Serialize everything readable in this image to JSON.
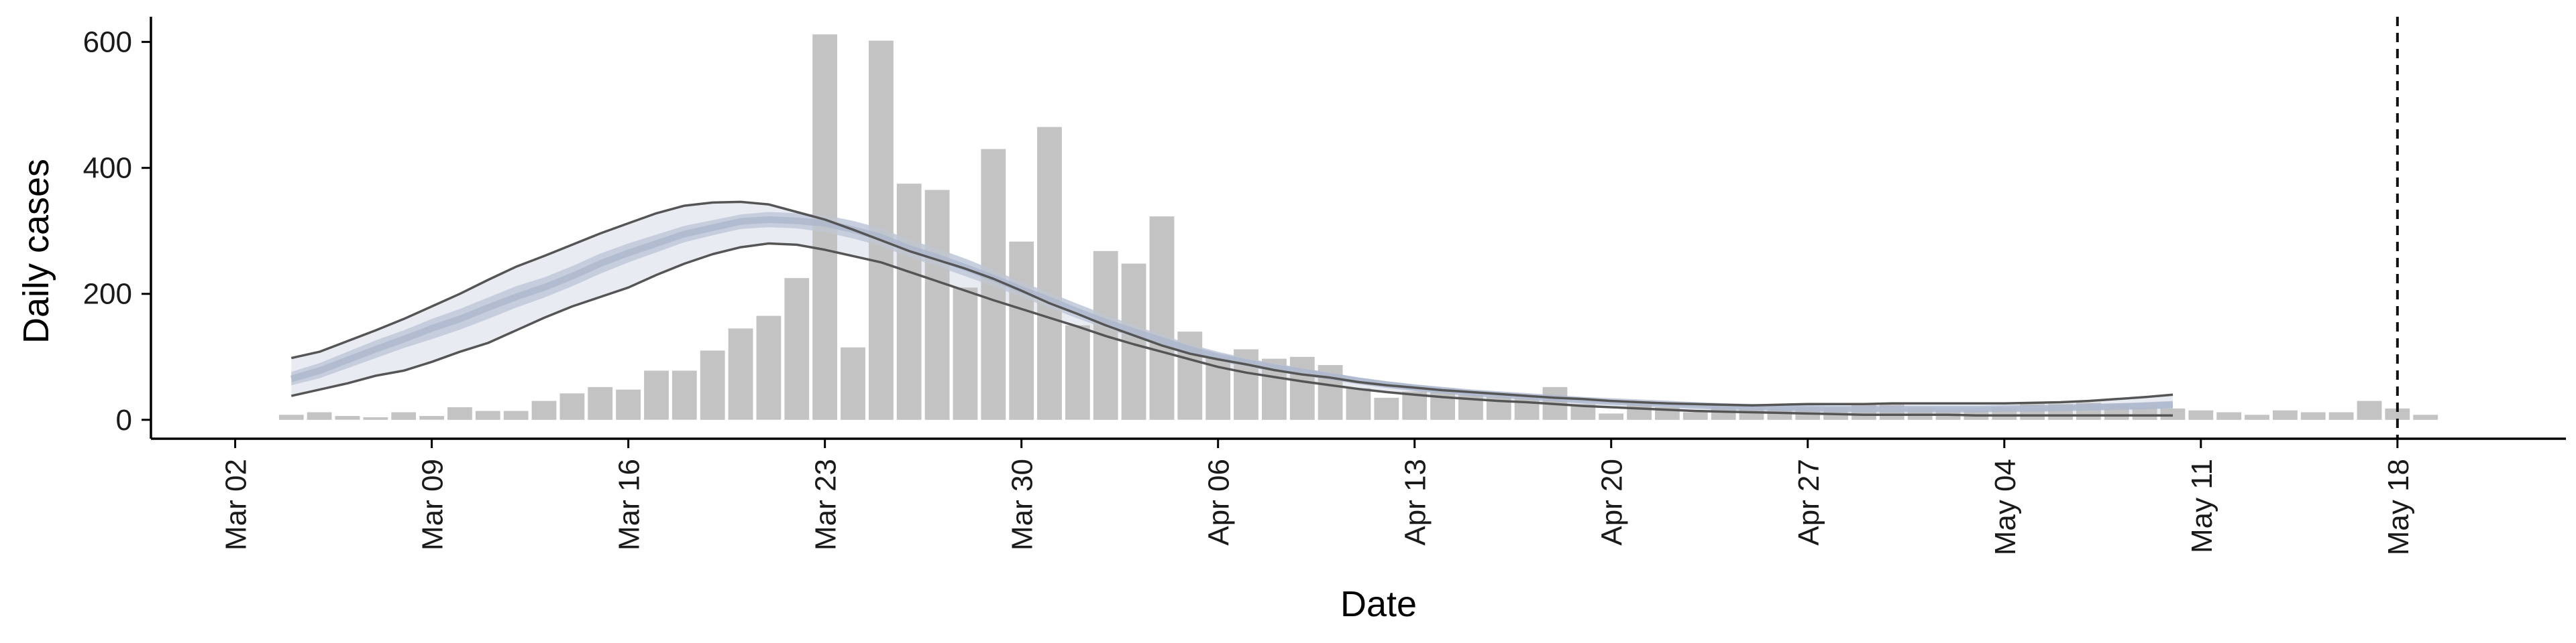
{
  "chart_data": {
    "type": "bar",
    "xlabel": "Date",
    "ylabel": "Daily cases",
    "ylim": [
      -30,
      640
    ],
    "y_ticks": [
      0,
      200,
      400,
      600
    ],
    "x_ticks": [
      {
        "label": "Mar 02",
        "date": "2020-03-02"
      },
      {
        "label": "Mar 09",
        "date": "2020-03-09"
      },
      {
        "label": "Mar 16",
        "date": "2020-03-16"
      },
      {
        "label": "Mar 23",
        "date": "2020-03-23"
      },
      {
        "label": "Mar 30",
        "date": "2020-03-30"
      },
      {
        "label": "Apr 06",
        "date": "2020-04-06"
      },
      {
        "label": "Apr 13",
        "date": "2020-04-13"
      },
      {
        "label": "Apr 20",
        "date": "2020-04-20"
      },
      {
        "label": "Apr 27",
        "date": "2020-04-27"
      },
      {
        "label": "May 04",
        "date": "2020-05-04"
      },
      {
        "label": "May 11",
        "date": "2020-05-11"
      },
      {
        "label": "May 18",
        "date": "2020-05-18"
      }
    ],
    "xlim": [
      "2020-02-28",
      "2020-05-24"
    ],
    "grid": false,
    "reference_line": {
      "date": "2020-05-18",
      "style": "dashed"
    },
    "bars": {
      "start_date": "2020-03-04",
      "values": [
        8,
        12,
        6,
        4,
        12,
        6,
        20,
        14,
        14,
        30,
        42,
        52,
        48,
        78,
        78,
        110,
        145,
        165,
        225,
        612,
        115,
        602,
        375,
        365,
        210,
        430,
        283,
        465,
        150,
        268,
        248,
        323,
        140,
        100,
        112,
        97,
        100,
        87,
        50,
        35,
        45,
        50,
        40,
        37,
        35,
        52,
        25,
        10,
        25,
        20,
        12,
        25,
        22,
        18,
        20,
        20,
        25,
        25,
        20,
        15,
        15,
        20,
        25,
        25,
        27,
        25,
        20,
        18,
        15,
        12,
        8,
        15,
        12,
        12,
        30,
        18,
        8
      ],
      "color": "#bebebe"
    },
    "estimate": {
      "start_date": "2020-03-04",
      "dates_count": 68,
      "median": [
        65,
        78,
        95,
        112,
        128,
        145,
        160,
        178,
        195,
        210,
        228,
        248,
        265,
        280,
        295,
        305,
        315,
        318,
        316,
        312,
        302,
        290,
        272,
        258,
        242,
        225,
        207,
        190,
        172,
        155,
        140,
        126,
        112,
        100,
        91,
        83,
        76,
        69,
        62,
        56,
        51,
        47,
        43,
        40,
        37,
        34,
        31,
        29,
        27,
        25,
        23,
        21,
        20,
        19,
        18,
        17,
        17,
        17,
        17,
        17,
        17,
        18,
        18,
        19,
        20,
        21,
        22,
        24
      ],
      "lower_90": [
        38,
        48,
        58,
        70,
        78,
        92,
        108,
        122,
        142,
        162,
        180,
        195,
        210,
        230,
        248,
        263,
        274,
        280,
        278,
        270,
        260,
        250,
        235,
        220,
        205,
        190,
        176,
        162,
        148,
        133,
        120,
        108,
        96,
        84,
        75,
        68,
        61,
        55,
        49,
        44,
        40,
        36,
        33,
        30,
        28,
        25,
        22,
        20,
        18,
        16,
        14,
        13,
        12,
        11,
        10,
        9,
        8,
        8,
        8,
        8,
        7,
        7,
        7,
        7,
        7,
        7,
        7,
        7
      ],
      "upper_90": [
        98,
        108,
        125,
        142,
        160,
        180,
        200,
        222,
        243,
        260,
        278,
        296,
        312,
        328,
        340,
        345,
        346,
        342,
        330,
        318,
        302,
        285,
        268,
        254,
        240,
        224,
        205,
        185,
        168,
        150,
        134,
        118,
        105,
        96,
        88,
        79,
        72,
        67,
        60,
        55,
        51,
        47,
        44,
        41,
        38,
        35,
        33,
        30,
        28,
        26,
        25,
        24,
        23,
        24,
        25,
        25,
        25,
        26,
        26,
        26,
        26,
        26,
        27,
        28,
        30,
        33,
        36,
        40
      ],
      "lower_50": [
        55,
        66,
        82,
        98,
        114,
        128,
        143,
        160,
        178,
        194,
        212,
        232,
        250,
        266,
        282,
        293,
        303,
        306,
        304,
        298,
        288,
        276,
        258,
        244,
        228,
        212,
        195,
        178,
        161,
        145,
        131,
        118,
        105,
        93,
        84,
        77,
        70,
        64,
        58,
        52,
        47,
        43,
        40,
        37,
        34,
        31,
        28,
        26,
        24,
        22,
        20,
        18,
        17,
        16,
        15,
        14,
        14,
        14,
        14,
        14,
        14,
        14,
        14,
        15,
        15,
        16,
        17,
        18
      ],
      "upper_50": [
        76,
        90,
        108,
        126,
        142,
        160,
        176,
        194,
        212,
        226,
        244,
        264,
        280,
        294,
        308,
        317,
        326,
        330,
        328,
        325,
        316,
        304,
        286,
        272,
        256,
        238,
        219,
        202,
        184,
        167,
        150,
        135,
        120,
        108,
        98,
        90,
        82,
        75,
        67,
        61,
        56,
        51,
        47,
        44,
        41,
        38,
        35,
        32,
        30,
        28,
        26,
        24,
        23,
        22,
        21,
        20,
        20,
        20,
        20,
        20,
        20,
        21,
        22,
        23,
        24,
        26,
        28,
        30
      ],
      "outer_band_color": "#e4e7f0",
      "inner_band_color": "#c4cbdc",
      "median_color": "#aab5cc",
      "bound_line_color": "#555555"
    }
  }
}
